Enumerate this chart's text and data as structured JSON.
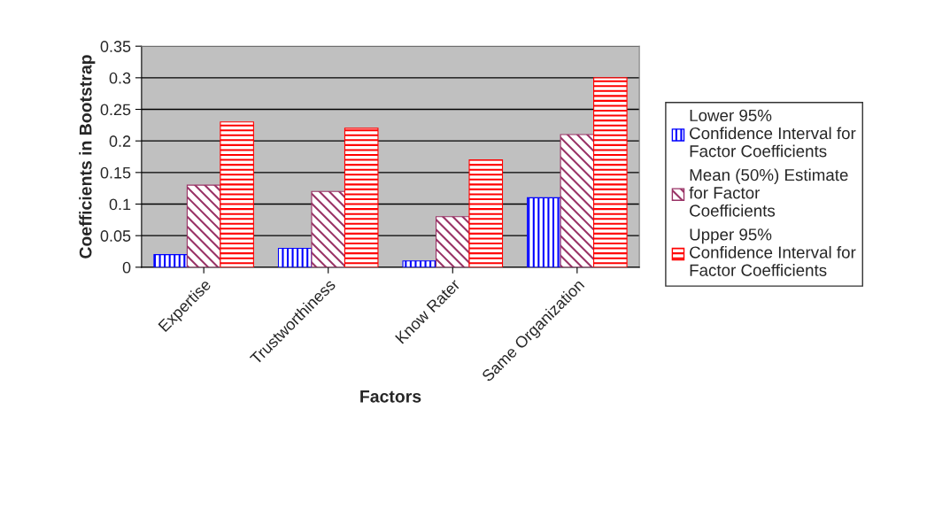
{
  "chart_data": {
    "type": "bar",
    "categories": [
      "Expertise",
      "Trustworthiness",
      "Know Rater",
      "Same Organization"
    ],
    "xlabel": "Factors",
    "ylabel": "Coefficients in Bootstrap",
    "series": [
      {
        "name": "Lower 95%\nConfidence Interval for\nFactor Coefficients",
        "color": "#0000ff",
        "values": [
          0.02,
          0.03,
          0.01,
          0.11
        ]
      },
      {
        "name": "Mean (50%) Estimate\nfor Factor\nCoefficients",
        "color": "#993366",
        "values": [
          0.13,
          0.12,
          0.08,
          0.21
        ]
      },
      {
        "name": "Upper 95%\nConfidence Interval for\nFactor Coefficients",
        "color": "#ff0000",
        "values": [
          0.23,
          0.22,
          0.17,
          0.3
        ]
      }
    ],
    "ylim": [
      0,
      0.35
    ],
    "yticks": [
      0,
      0.05,
      0.1,
      0.15,
      0.2,
      0.25,
      0.3,
      0.35
    ],
    "grid": "y",
    "legend": "right"
  }
}
